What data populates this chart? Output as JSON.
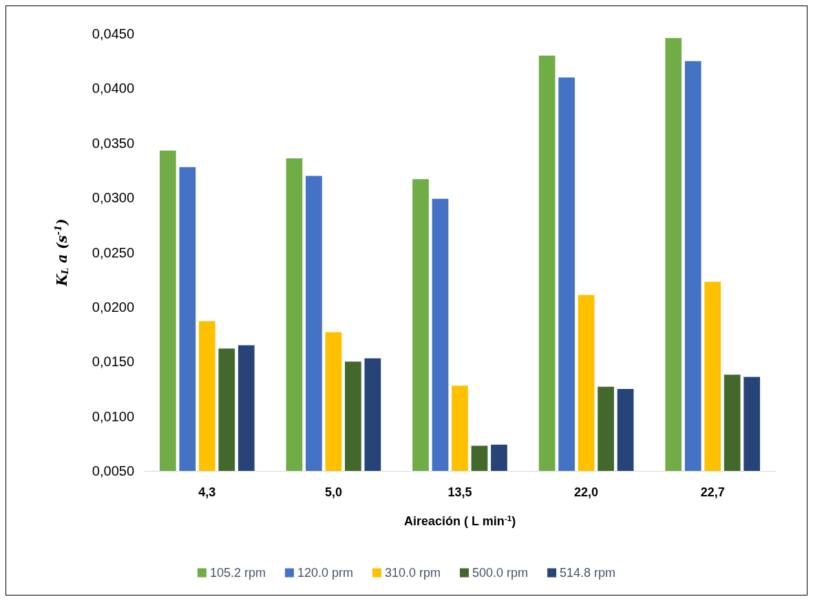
{
  "chart_data": {
    "type": "bar",
    "categories": [
      "4,3",
      "5,0",
      "13,5",
      "22,0",
      "22,7"
    ],
    "xlabel": "Aireación ( L min$^{-1}$)",
    "ylabel": "K$_{L}$ a (s$^{-1}$)",
    "ylim": [
      0.005,
      0.045
    ],
    "yticks": [
      {
        "value": 0.005,
        "label": "0,0050"
      },
      {
        "value": 0.01,
        "label": "0,0100"
      },
      {
        "value": 0.015,
        "label": "0,0150"
      },
      {
        "value": 0.02,
        "label": "0,0200"
      },
      {
        "value": 0.025,
        "label": "0,0250"
      },
      {
        "value": 0.03,
        "label": "0,0300"
      },
      {
        "value": 0.035,
        "label": "0,0350"
      },
      {
        "value": 0.04,
        "label": "0,0400"
      },
      {
        "value": 0.045,
        "label": "0,0450"
      }
    ],
    "series": [
      {
        "name": "105.2 rpm",
        "color": "#70ad47",
        "values": [
          0.0343,
          0.0336,
          0.0317,
          0.043,
          0.0446
        ]
      },
      {
        "name": "120.0 prm",
        "color": "#4472c4",
        "values": [
          0.0328,
          0.032,
          0.0299,
          0.041,
          0.0425
        ]
      },
      {
        "name": "310.0 rpm",
        "color": "#ffc000",
        "values": [
          0.0187,
          0.0177,
          0.0128,
          0.0211,
          0.0223
        ]
      },
      {
        "name": "500.0 rpm",
        "color": "#43682b",
        "values": [
          0.0162,
          0.015,
          0.0073,
          0.0127,
          0.0138
        ]
      },
      {
        "name": "514.8 rpm",
        "color": "#264478",
        "values": [
          0.0165,
          0.0153,
          0.0074,
          0.0125,
          0.0136
        ]
      }
    ],
    "grid": false,
    "legend": "bottom"
  }
}
